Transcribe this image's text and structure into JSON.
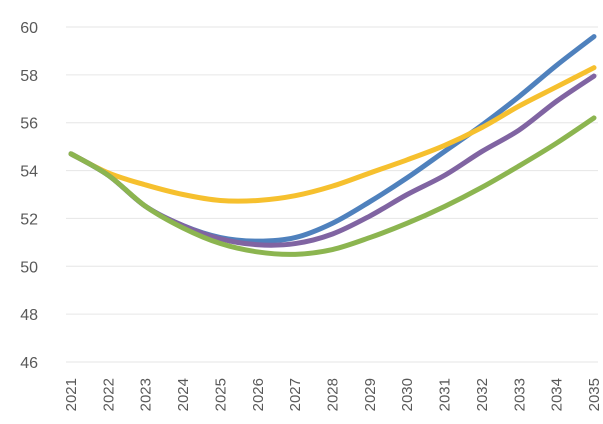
{
  "chart_data": {
    "type": "line",
    "title": "",
    "xlabel": "",
    "ylabel": "",
    "categories": [
      "2021",
      "2022",
      "2023",
      "2024",
      "2025",
      "2026",
      "2027",
      "2028",
      "2029",
      "2030",
      "2031",
      "2032",
      "2033",
      "2034",
      "2035"
    ],
    "ylim": [
      46,
      60
    ],
    "yticks": [
      46,
      48,
      50,
      52,
      54,
      56,
      58,
      60
    ],
    "grid": "horizontal",
    "legend": "none",
    "series": [
      {
        "color": "#4f81bd",
        "values": [
          54.7,
          53.8,
          52.5,
          51.7,
          51.2,
          51.05,
          51.2,
          51.8,
          52.7,
          53.7,
          54.8,
          55.9,
          57.1,
          58.4,
          59.6
        ]
      },
      {
        "color": "#f6c02e",
        "values": [
          54.7,
          53.9,
          53.4,
          53.0,
          52.75,
          52.75,
          52.95,
          53.35,
          53.9,
          54.45,
          55.05,
          55.8,
          56.7,
          57.5,
          58.3
        ]
      },
      {
        "color": "#8064a2",
        "values": [
          54.7,
          53.8,
          52.5,
          51.7,
          51.15,
          50.9,
          50.95,
          51.35,
          52.1,
          53.0,
          53.8,
          54.8,
          55.7,
          56.9,
          57.95
        ]
      },
      {
        "color": "#8cb550",
        "values": [
          54.7,
          53.8,
          52.5,
          51.6,
          50.95,
          50.6,
          50.5,
          50.7,
          51.2,
          51.8,
          52.5,
          53.3,
          54.2,
          55.15,
          56.2
        ]
      }
    ]
  }
}
